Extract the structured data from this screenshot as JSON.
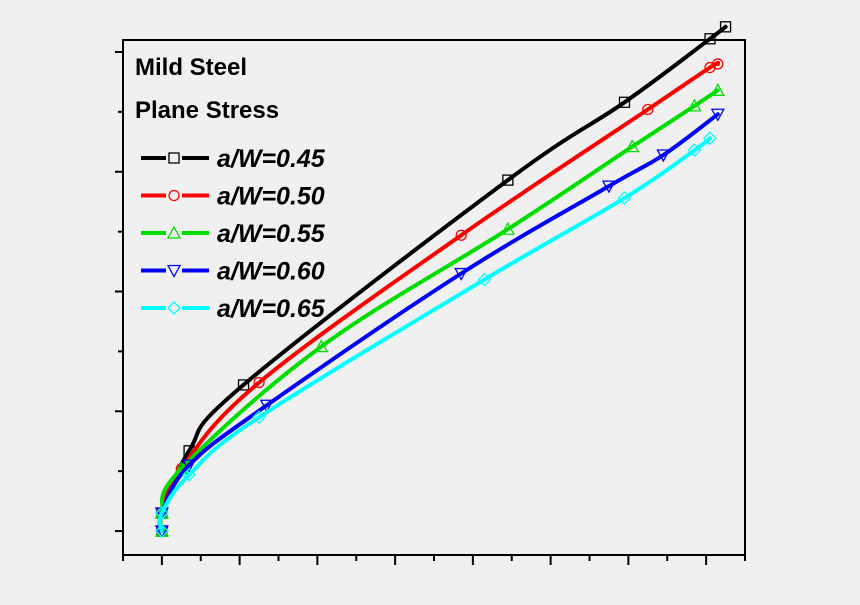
{
  "chart_data": {
    "type": "line",
    "title": "Mild Steel",
    "subtitle": "Plane Stress",
    "xlabel": "",
    "ylabel": "",
    "xlim": [
      -0.5,
      7.5
    ],
    "ylim": [
      -0.2,
      4.1
    ],
    "x_tick_labels": [],
    "y_tick_labels": [],
    "legend_position": "top-left",
    "grid": false,
    "series": [
      {
        "name": "a/W=0.45",
        "color": "#000000",
        "marker": "square",
        "x": [
          0.0,
          0.0,
          0.35,
          1.05,
          4.45,
          5.95,
          7.05,
          7.25
        ],
        "y": [
          0.0,
          0.15,
          0.67,
          1.22,
          2.93,
          3.58,
          4.11,
          4.21
        ]
      },
      {
        "name": "a/W=0.50",
        "color": "#ff0000",
        "marker": "circle",
        "x": [
          0.0,
          0.0,
          0.25,
          1.25,
          3.85,
          6.25,
          7.05,
          7.15
        ],
        "y": [
          0.0,
          0.15,
          0.52,
          1.24,
          2.47,
          3.52,
          3.87,
          3.9
        ]
      },
      {
        "name": "a/W=0.55",
        "color": "#00dd00",
        "marker": "triangle-up",
        "x": [
          0.0,
          0.0,
          0.25,
          2.05,
          4.45,
          6.05,
          6.85,
          7.15
        ],
        "y": [
          0.0,
          0.15,
          0.52,
          1.54,
          2.52,
          3.21,
          3.55,
          3.68
        ]
      },
      {
        "name": "a/W=0.60",
        "color": "#0000ff",
        "marker": "triangle-down",
        "x": [
          0.0,
          0.0,
          0.35,
          1.35,
          3.85,
          5.75,
          6.45,
          7.15
        ],
        "y": [
          0.0,
          0.15,
          0.55,
          1.05,
          2.15,
          2.88,
          3.14,
          3.48
        ]
      },
      {
        "name": "a/W=0.65",
        "color": "#00ffff",
        "marker": "diamond",
        "x": [
          0.0,
          0.0,
          0.35,
          1.25,
          4.15,
          5.95,
          6.85,
          7.05
        ],
        "y": [
          0.0,
          0.15,
          0.47,
          0.95,
          2.1,
          2.78,
          3.18,
          3.28
        ]
      }
    ]
  }
}
